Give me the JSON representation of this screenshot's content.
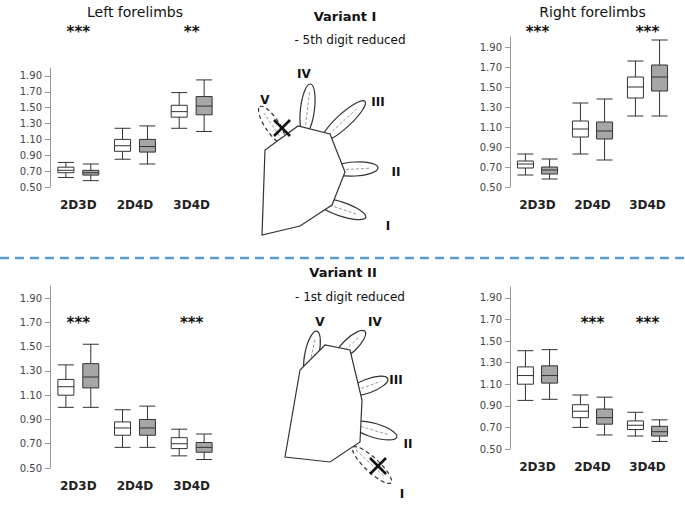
{
  "figure": {
    "sections": [
      {
        "title": "Variant I",
        "subtitle": "- 5th digit reduced",
        "digits": [
          "V",
          "IV",
          "III",
          "II",
          "I"
        ]
      },
      {
        "title": "Variant II",
        "subtitle": "- 1st digit reduced",
        "digits": [
          "V",
          "IV",
          "III",
          "II",
          "I"
        ]
      }
    ]
  },
  "chart_data": [
    {
      "type": "boxplot",
      "title": "Left forelimbs",
      "categories": [
        "2D3D",
        "2D4D",
        "3D4D"
      ],
      "series": [
        {
          "color": "#ffffff",
          "values": [
            [
              0.62,
              0.68,
              0.71,
              0.75,
              0.81
            ],
            [
              0.85,
              0.95,
              1.02,
              1.1,
              1.24
            ],
            [
              1.24,
              1.38,
              1.45,
              1.53,
              1.69
            ]
          ]
        },
        {
          "color": "#a6a6a6",
          "values": [
            [
              0.58,
              0.65,
              0.68,
              0.71,
              0.79
            ],
            [
              0.79,
              0.94,
              1.01,
              1.1,
              1.27
            ],
            [
              1.2,
              1.41,
              1.52,
              1.64,
              1.85
            ]
          ]
        }
      ],
      "ylim": [
        0.5,
        2.0
      ],
      "yticks": [
        {
          "value": 0.5,
          "label": "0.50"
        },
        {
          "value": 0.7,
          "label": "0.70"
        },
        {
          "value": 0.9,
          "label": "0.90"
        },
        {
          "value": 1.1,
          "label": "1.10"
        },
        {
          "value": 1.3,
          "label": "1.30"
        },
        {
          "value": 1.5,
          "label": "1.50"
        },
        {
          "value": 1.7,
          "label": "1.70"
        },
        {
          "value": 1.9,
          "label": "1.90"
        }
      ],
      "grid": false,
      "annotations": [
        {
          "category": "2D3D",
          "text": "***"
        },
        {
          "category": "3D4D",
          "text": "**"
        }
      ]
    },
    {
      "type": "boxplot",
      "title": "Right forelimbs",
      "categories": [
        "2D3D",
        "2D4D",
        "3D4D"
      ],
      "series": [
        {
          "color": "#ffffff",
          "values": [
            [
              0.62,
              0.69,
              0.73,
              0.76,
              0.83
            ],
            [
              0.83,
              1.0,
              1.08,
              1.16,
              1.34
            ],
            [
              1.21,
              1.39,
              1.5,
              1.6,
              1.76
            ]
          ]
        },
        {
          "color": "#a6a6a6",
          "values": [
            [
              0.58,
              0.63,
              0.67,
              0.7,
              0.78
            ],
            [
              0.77,
              0.98,
              1.06,
              1.15,
              1.38
            ],
            [
              1.21,
              1.46,
              1.6,
              1.72,
              1.97
            ]
          ]
        }
      ],
      "ylim": [
        0.5,
        2.0
      ],
      "yticks": [
        {
          "value": 0.5,
          "label": "0.50"
        },
        {
          "value": 0.7,
          "label": "0.70"
        },
        {
          "value": 0.9,
          "label": "0.90"
        },
        {
          "value": 1.1,
          "label": "1.10"
        },
        {
          "value": 1.3,
          "label": "1.30"
        },
        {
          "value": 1.5,
          "label": "1.50"
        },
        {
          "value": 1.7,
          "label": "1.70"
        },
        {
          "value": 1.9,
          "label": "1.90"
        }
      ],
      "grid": false,
      "annotations": [
        {
          "category": "2D3D",
          "text": "***"
        },
        {
          "category": "3D4D",
          "text": "***"
        }
      ]
    },
    {
      "type": "boxplot",
      "categories": [
        "2D3D",
        "2D4D",
        "3D4D"
      ],
      "series": [
        {
          "color": "#ffffff",
          "values": [
            [
              1.0,
              1.1,
              1.17,
              1.23,
              1.35
            ],
            [
              0.67,
              0.77,
              0.83,
              0.88,
              0.98
            ],
            [
              0.6,
              0.66,
              0.7,
              0.75,
              0.82
            ]
          ]
        },
        {
          "color": "#a6a6a6",
          "values": [
            [
              1.0,
              1.16,
              1.25,
              1.36,
              1.52
            ],
            [
              0.67,
              0.77,
              0.83,
              0.9,
              1.01
            ],
            [
              0.57,
              0.63,
              0.67,
              0.71,
              0.78
            ]
          ]
        }
      ],
      "ylim": [
        0.5,
        2.0
      ],
      "yticks": [
        {
          "value": 0.5,
          "label": "0.50"
        },
        {
          "value": 0.7,
          "label": "0.70"
        },
        {
          "value": 0.9,
          "label": "0.90"
        },
        {
          "value": 1.1,
          "label": "1.10"
        },
        {
          "value": 1.3,
          "label": "1.30"
        },
        {
          "value": 1.5,
          "label": "1.50"
        },
        {
          "value": 1.7,
          "label": "1.70"
        },
        {
          "value": 1.9,
          "label": "1.90"
        }
      ],
      "grid": false,
      "annotations": [
        {
          "category": "2D3D",
          "text": "***"
        },
        {
          "category": "3D4D",
          "text": "***"
        }
      ]
    },
    {
      "type": "boxplot",
      "categories": [
        "2D3D",
        "2D4D",
        "3D4D"
      ],
      "series": [
        {
          "color": "#ffffff",
          "values": [
            [
              0.95,
              1.1,
              1.18,
              1.26,
              1.41
            ],
            [
              0.7,
              0.79,
              0.85,
              0.91,
              1.0
            ],
            [
              0.62,
              0.68,
              0.72,
              0.76,
              0.84
            ]
          ]
        },
        {
          "color": "#a6a6a6",
          "values": [
            [
              0.96,
              1.11,
              1.18,
              1.27,
              1.42
            ],
            [
              0.63,
              0.73,
              0.79,
              0.87,
              0.98
            ],
            [
              0.57,
              0.62,
              0.66,
              0.71,
              0.77
            ]
          ]
        }
      ],
      "ylim": [
        0.5,
        2.0
      ],
      "yticks": [
        {
          "value": 0.5,
          "label": "0.50"
        },
        {
          "value": 0.7,
          "label": "0.70"
        },
        {
          "value": 0.9,
          "label": "0.90"
        },
        {
          "value": 1.1,
          "label": "1.10"
        },
        {
          "value": 1.3,
          "label": "1.30"
        },
        {
          "value": 1.5,
          "label": "1.50"
        },
        {
          "value": 1.7,
          "label": "1.70"
        },
        {
          "value": 1.9,
          "label": "1.90"
        }
      ],
      "grid": false,
      "annotations": [
        {
          "category": "2D4D",
          "text": "***"
        },
        {
          "category": "3D4D",
          "text": "***"
        }
      ]
    }
  ]
}
